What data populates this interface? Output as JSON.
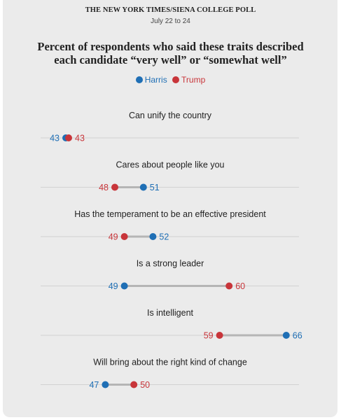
{
  "header": {
    "source": "THE NEW YORK TIMES/SIENA COLLEGE POLL",
    "dates": "July 22 to 24"
  },
  "colors": {
    "harris": "#1f6fb5",
    "trump": "#c8353a",
    "connector": "#b5b5b5",
    "baseline": "#d2d2d2"
  },
  "chart_data": {
    "type": "dumbbell",
    "title": "Percent of respondents who said these traits described each candidate “very well” or “somewhat well”",
    "legend": [
      "Harris",
      "Trump"
    ],
    "legend_placement": "top-center",
    "xlim": [
      35,
      70
    ],
    "grid": false,
    "categories": [
      "Can unify the country",
      "Cares about people like you",
      "Has the temperament to be an effective president",
      "Is a strong leader",
      "Is intelligent",
      "Will bring about the right kind of change"
    ],
    "series": [
      {
        "name": "Harris",
        "values": [
          43,
          51,
          52,
          49,
          66,
          47
        ]
      },
      {
        "name": "Trump",
        "values": [
          43,
          48,
          49,
          60,
          59,
          50
        ]
      }
    ]
  }
}
